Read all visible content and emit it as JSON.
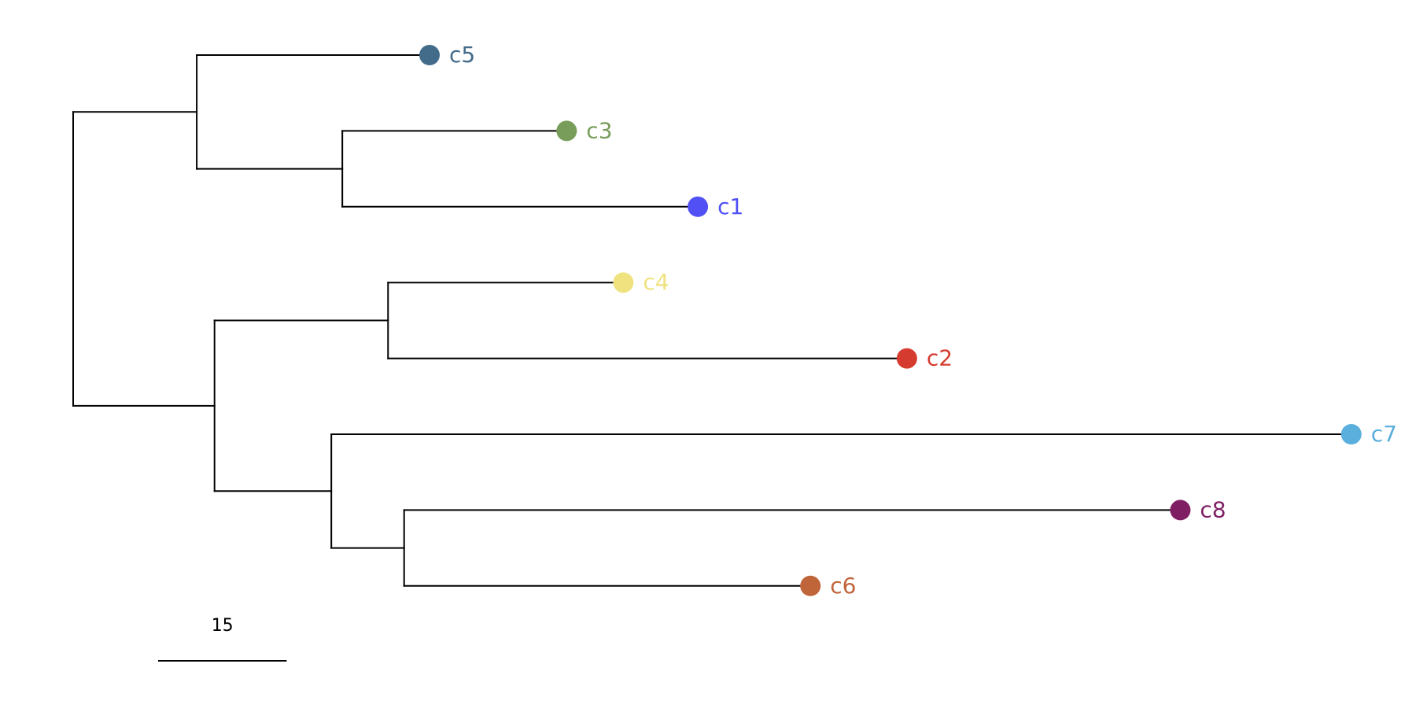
{
  "tree": {
    "children": [
      {
        "length": 14.6,
        "children": [
          {
            "label": "c5",
            "color": "#436b8a",
            "length": 27.5
          },
          {
            "length": 17.2,
            "children": [
              {
                "label": "c3",
                "color": "#789d5a",
                "length": 26.5
              },
              {
                "label": "c1",
                "color": "#5050f5",
                "length": 42.0
              }
            ]
          }
        ]
      },
      {
        "length": 16.7,
        "children": [
          {
            "length": 20.5,
            "children": [
              {
                "label": "c4",
                "color": "#efe27f",
                "length": 27.8
              },
              {
                "label": "c2",
                "color": "#d63b2f",
                "length": 61.3
              }
            ]
          },
          {
            "length": 13.8,
            "children": [
              {
                "label": "c7",
                "color": "#5aafdc",
                "length": 120.5
              },
              {
                "length": 8.6,
                "children": [
                  {
                    "label": "c8",
                    "color": "#7f1e63",
                    "length": 91.7
                  },
                  {
                    "label": "c6",
                    "color": "#c0643a",
                    "length": 48.0
                  }
                ]
              }
            ]
          }
        ]
      }
    ]
  },
  "scale_bar": {
    "value": 15
  }
}
